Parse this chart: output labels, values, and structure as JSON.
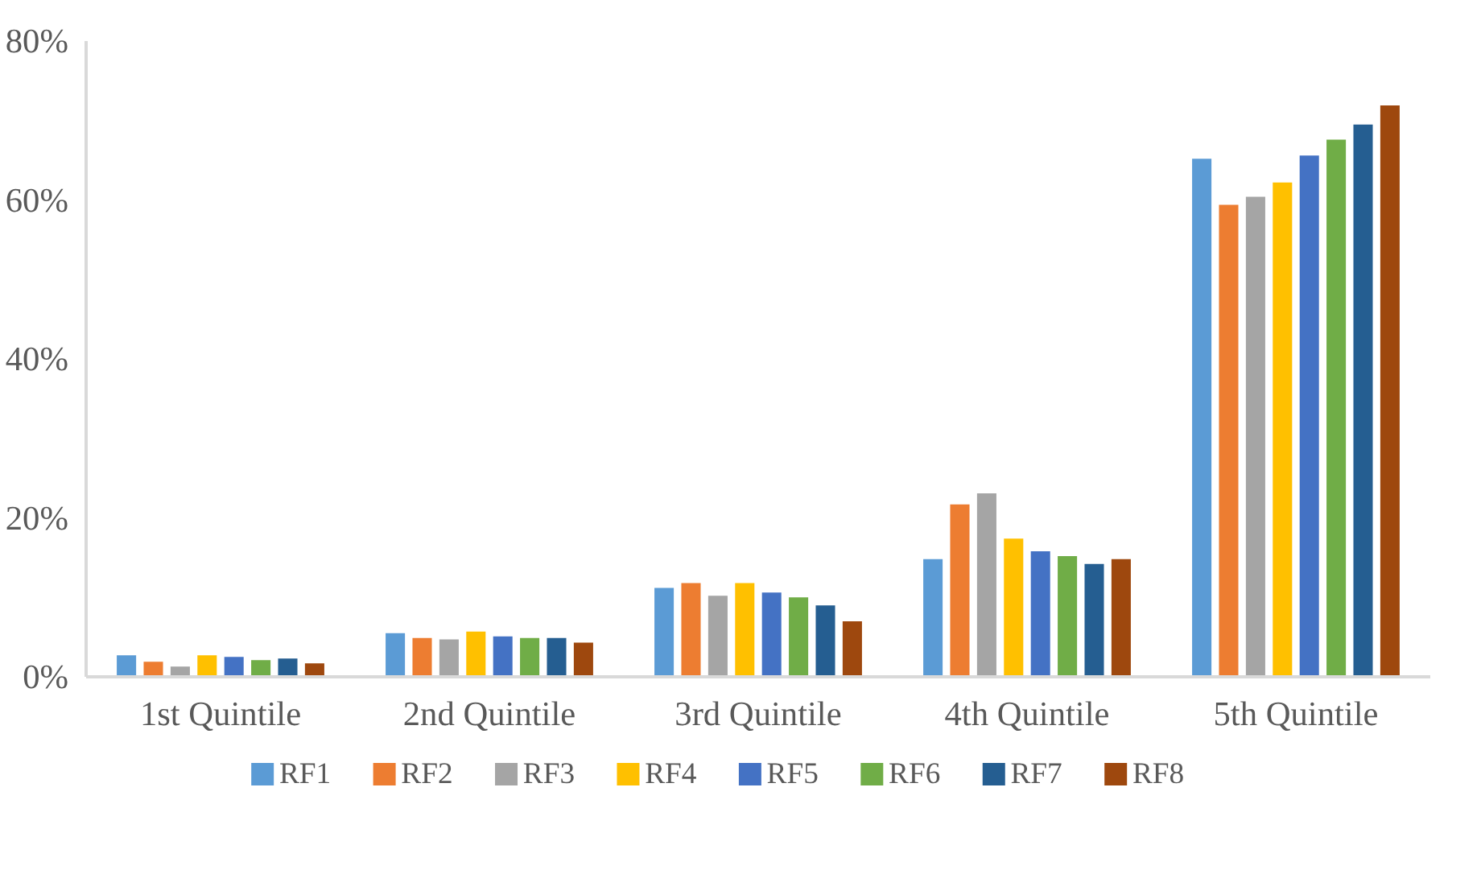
{
  "chart_data": {
    "type": "bar",
    "categories": [
      "1st Quintile",
      "2nd Quintile",
      "3rd Quintile",
      "4th Quintile",
      "5th Quintile"
    ],
    "ylim": [
      0,
      80
    ],
    "yticks": [
      {
        "value": 0,
        "label": "0%"
      },
      {
        "value": 20,
        "label": "20%"
      },
      {
        "value": 40,
        "label": "40%"
      },
      {
        "value": 60,
        "label": "60%"
      },
      {
        "value": 80,
        "label": "80%"
      }
    ],
    "grid": false,
    "legend": "bottom",
    "series": [
      {
        "name": "RF1",
        "color": "#5b9bd5",
        "values": [
          2.8,
          5.6,
          11.3,
          14.9,
          65.3
        ]
      },
      {
        "name": "RF2",
        "color": "#ed7d31",
        "values": [
          2.0,
          5.0,
          11.9,
          21.8,
          59.5
        ]
      },
      {
        "name": "RF3",
        "color": "#a5a5a5",
        "values": [
          1.4,
          4.8,
          10.3,
          23.2,
          60.5
        ]
      },
      {
        "name": "RF4",
        "color": "#ffc000",
        "values": [
          2.8,
          5.8,
          11.9,
          17.5,
          62.3
        ]
      },
      {
        "name": "RF5",
        "color": "#4472c4",
        "values": [
          2.6,
          5.2,
          10.7,
          15.9,
          65.7
        ]
      },
      {
        "name": "RF6",
        "color": "#70ad47",
        "values": [
          2.2,
          5.0,
          10.1,
          15.3,
          67.7
        ]
      },
      {
        "name": "RF7",
        "color": "#255e91",
        "values": [
          2.4,
          5.0,
          9.1,
          14.3,
          69.6
        ]
      },
      {
        "name": "RF8",
        "color": "#9e480e",
        "values": [
          1.8,
          4.4,
          7.1,
          14.9,
          72.0
        ]
      }
    ]
  }
}
